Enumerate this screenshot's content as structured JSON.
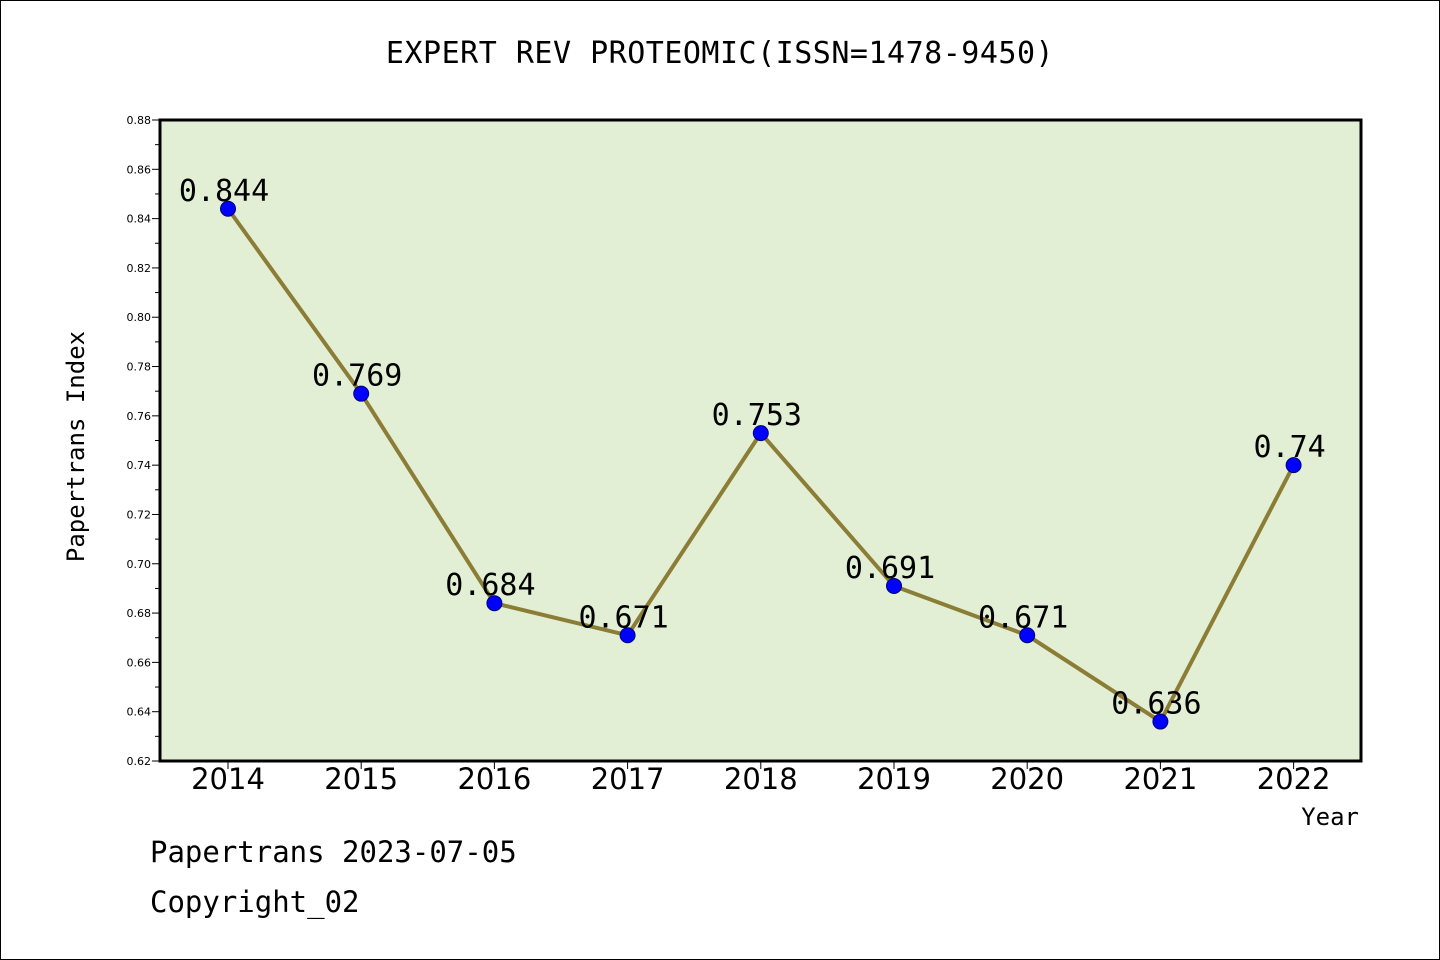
{
  "title": "EXPERT REV PROTEOMIC(ISSN=1478-9450)",
  "footer": {
    "date_line": "Papertrans 2023-07-05",
    "copyright": "Copyright_02"
  },
  "chart_data": {
    "type": "line",
    "x": [
      "2014",
      "2015",
      "2016",
      "2017",
      "2018",
      "2019",
      "2020",
      "2021",
      "2022"
    ],
    "series": [
      {
        "values": [
          0.844,
          0.769,
          0.684,
          0.671,
          0.753,
          0.691,
          0.671,
          0.636,
          0.74
        ]
      }
    ],
    "data_labels": [
      "0.844",
      "0.769",
      "0.684",
      "0.671",
      "0.753",
      "0.691",
      "0.671",
      "0.636",
      "0.74"
    ],
    "xlabel": "Year",
    "ylabel": "Papertrans Index",
    "ylim": [
      0.62,
      0.88
    ],
    "yticks": [
      "0.62",
      "0.64",
      "0.66",
      "0.68",
      "0.70",
      "0.72",
      "0.74",
      "0.76",
      "0.78",
      "0.80",
      "0.82",
      "0.84",
      "0.86",
      "0.88"
    ],
    "grid": false,
    "legend": "none",
    "colors": {
      "plot_background": "#e2efd4",
      "line": "#8b7d35",
      "marker": "#0000ff"
    }
  }
}
